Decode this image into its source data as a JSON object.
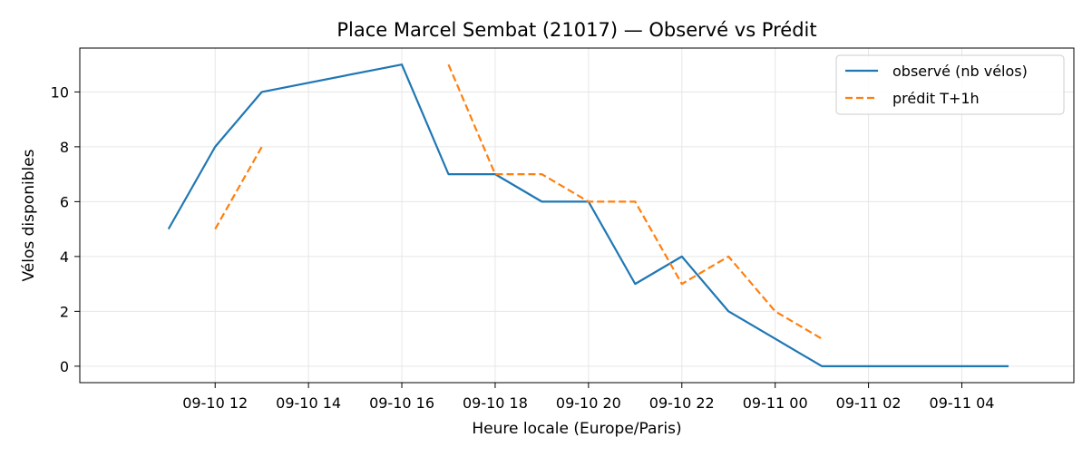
{
  "chart_data": {
    "type": "line",
    "title": "Place Marcel Sembat (21017) — Observé vs Prédit",
    "xlabel": "Heure locale (Europe/Paris)",
    "ylabel": "Vélos disponibles",
    "x_ticks": [
      "09-10 12",
      "09-10 14",
      "09-10 16",
      "09-10 18",
      "09-10 20",
      "09-10 22",
      "09-11 00",
      "09-11 02",
      "09-11 04"
    ],
    "x_tick_hours": [
      12,
      14,
      16,
      18,
      20,
      22,
      24,
      26,
      28
    ],
    "xlim_hours": [
      9.1,
      30.4
    ],
    "y_ticks": [
      0,
      2,
      4,
      6,
      8,
      10
    ],
    "ylim": [
      -0.6,
      11.6
    ],
    "grid": true,
    "legend_position": "top-right",
    "series": [
      {
        "name": "observé (nb vélos)",
        "color": "#1f77b4",
        "style": "solid",
        "points": [
          [
            11,
            5
          ],
          [
            12,
            8
          ],
          [
            13,
            10
          ],
          [
            16,
            11
          ],
          [
            17,
            7
          ],
          [
            18,
            7
          ],
          [
            19,
            6
          ],
          [
            20,
            6
          ],
          [
            21,
            3
          ],
          [
            22,
            4
          ],
          [
            23,
            2
          ],
          [
            24,
            1
          ],
          [
            25,
            0
          ],
          [
            26,
            0
          ],
          [
            27,
            0
          ],
          [
            28,
            0
          ],
          [
            29,
            0
          ]
        ]
      },
      {
        "name": "prédit T+1h",
        "color": "#ff7f0e",
        "style": "dashed",
        "segments": [
          [
            [
              12,
              5
            ],
            [
              13,
              8
            ]
          ],
          [
            [
              17,
              11
            ],
            [
              18,
              7
            ],
            [
              19,
              7
            ],
            [
              20,
              6
            ],
            [
              21,
              6
            ],
            [
              22,
              3
            ],
            [
              23,
              4
            ],
            [
              24,
              2
            ],
            [
              25,
              1
            ]
          ]
        ]
      }
    ]
  }
}
